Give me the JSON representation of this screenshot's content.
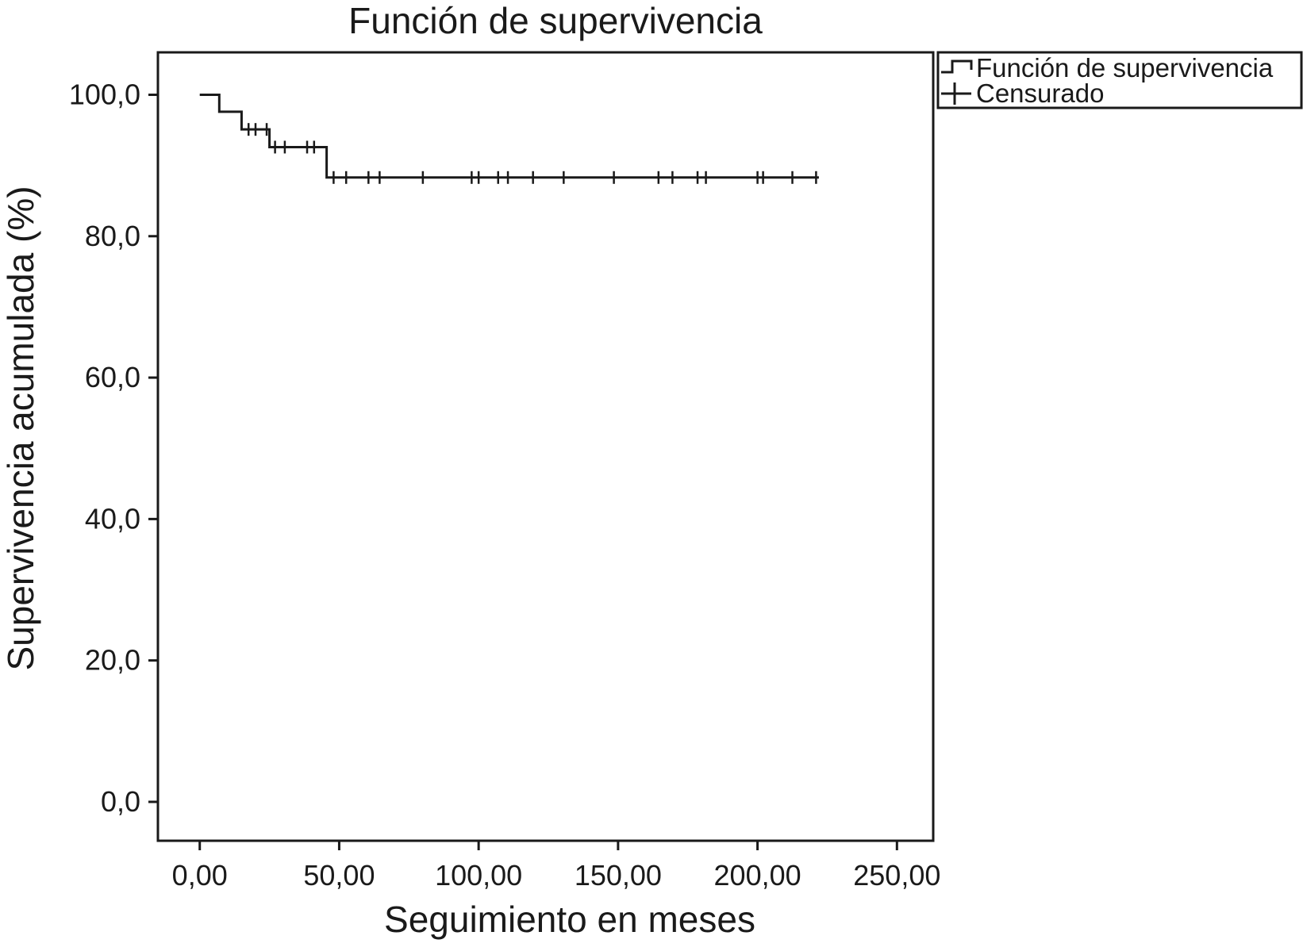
{
  "chart_data": {
    "type": "line",
    "subtype": "kaplan-meier-step",
    "title": "Función de supervivencia",
    "xlabel": "Seguimiento en meses",
    "ylabel": "Supervivencia acumulada (%)",
    "xlim": [
      -15,
      263
    ],
    "ylim": [
      -5.5,
      106
    ],
    "x_ticks": [
      0,
      50,
      100,
      150,
      200,
      250
    ],
    "x_tick_labels": [
      "0,00",
      "50,00",
      "100,00",
      "150,00",
      "200,00",
      "250,00"
    ],
    "y_ticks": [
      0,
      20,
      40,
      60,
      80,
      100
    ],
    "y_tick_labels": [
      "0,0",
      "20,0",
      "40,0",
      "60,0",
      "80,0",
      "100,0"
    ],
    "grid": false,
    "legend_position": "outside-top-right",
    "color": "#1a1a1a",
    "series": [
      {
        "name": "Función de supervivencia",
        "kind": "step",
        "x": [
          0,
          7,
          15,
          25,
          45.5,
          222
        ],
        "y": [
          100,
          97.6,
          95.1,
          92.6,
          88.3,
          88.3
        ]
      },
      {
        "name": "Censurado",
        "kind": "censor-marks",
        "points": [
          {
            "x": 17.5,
            "y": 95.1
          },
          {
            "x": 20,
            "y": 95.1
          },
          {
            "x": 24,
            "y": 95.1
          },
          {
            "x": 27,
            "y": 92.6
          },
          {
            "x": 30.5,
            "y": 92.6
          },
          {
            "x": 38.5,
            "y": 92.6
          },
          {
            "x": 41,
            "y": 92.6
          },
          {
            "x": 48,
            "y": 88.3
          },
          {
            "x": 52.5,
            "y": 88.3
          },
          {
            "x": 60.5,
            "y": 88.3
          },
          {
            "x": 64.5,
            "y": 88.3
          },
          {
            "x": 80,
            "y": 88.3
          },
          {
            "x": 97.5,
            "y": 88.3
          },
          {
            "x": 100,
            "y": 88.3
          },
          {
            "x": 107,
            "y": 88.3
          },
          {
            "x": 110.5,
            "y": 88.3
          },
          {
            "x": 119.5,
            "y": 88.3
          },
          {
            "x": 130.5,
            "y": 88.3
          },
          {
            "x": 148.5,
            "y": 88.3
          },
          {
            "x": 164.5,
            "y": 88.3
          },
          {
            "x": 169.5,
            "y": 88.3
          },
          {
            "x": 178.5,
            "y": 88.3
          },
          {
            "x": 181.5,
            "y": 88.3
          },
          {
            "x": 200,
            "y": 88.3
          },
          {
            "x": 202,
            "y": 88.3
          },
          {
            "x": 212.5,
            "y": 88.3
          },
          {
            "x": 221,
            "y": 88.3
          }
        ]
      }
    ]
  }
}
